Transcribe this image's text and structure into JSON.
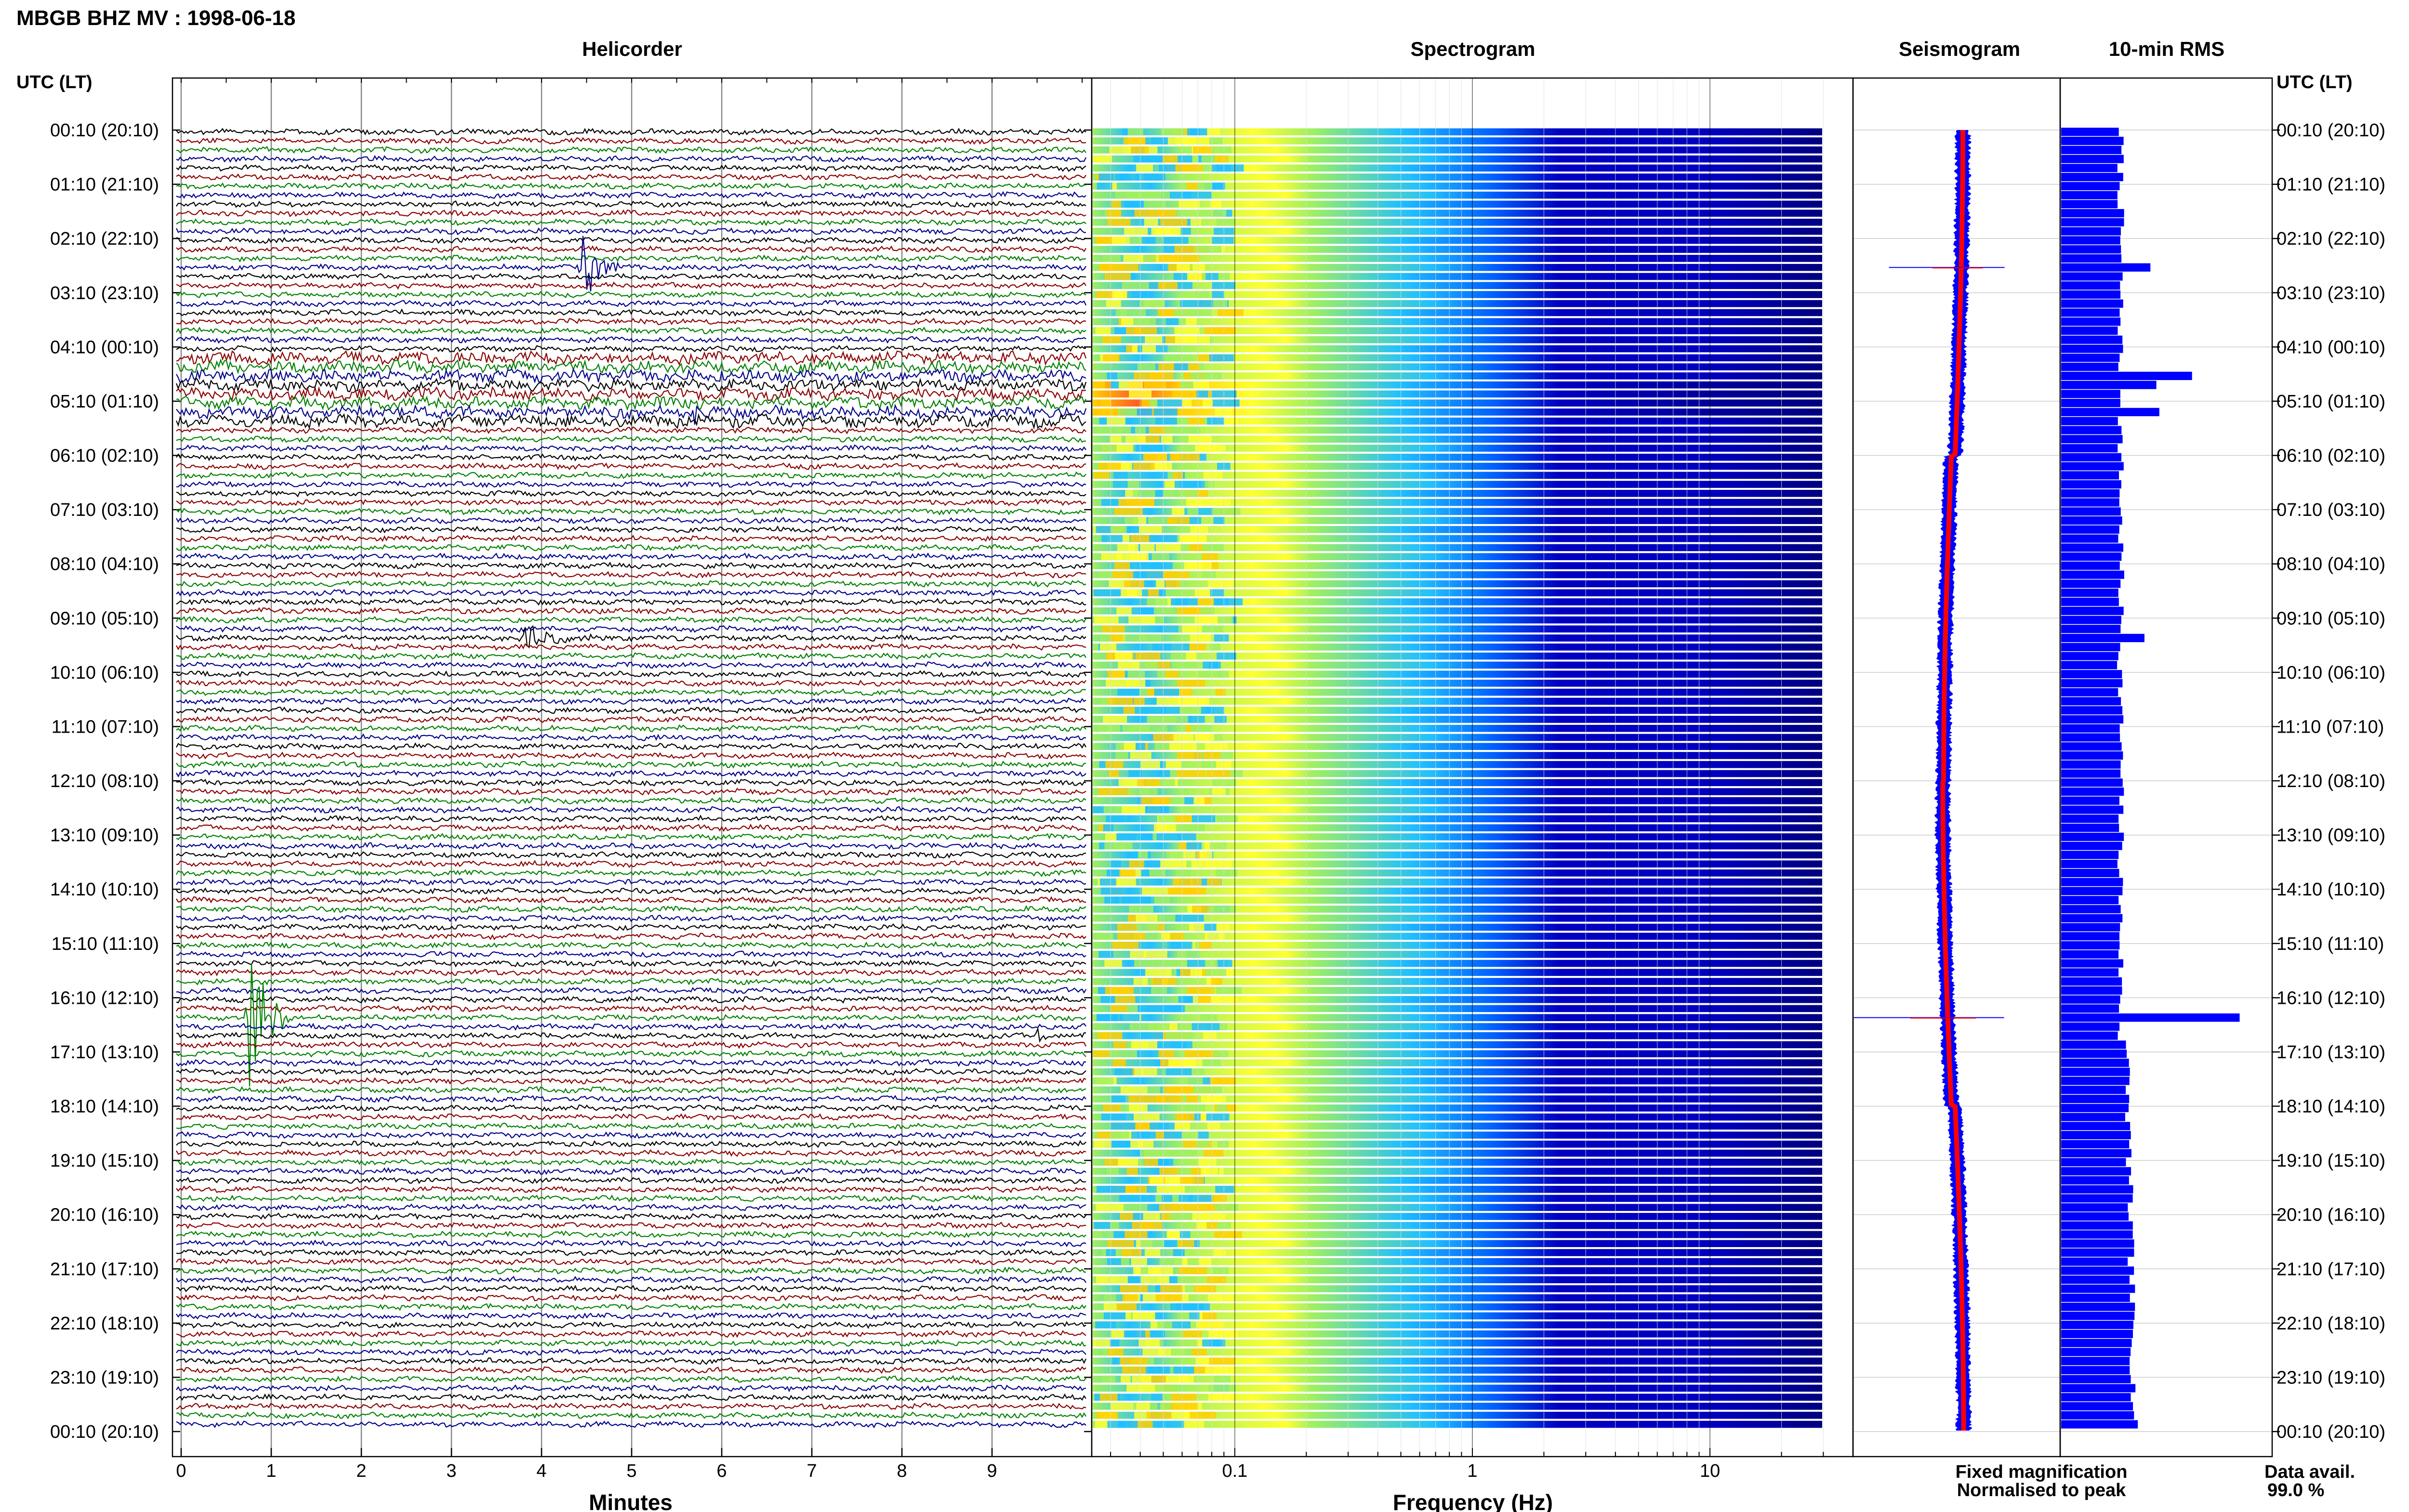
{
  "header": {
    "title": "MBGB BHZ MV : 1998-06-18"
  },
  "panels": {
    "helicorder": "Helicorder",
    "spectrogram": "Spectrogram",
    "seismogram": "Seismogram",
    "rms": "10-min RMS"
  },
  "axes": {
    "time_header_left": "UTC (LT)",
    "time_header_right": "UTC (LT)",
    "minutes_label": "Minutes",
    "frequency_label": "Frequency (Hz)"
  },
  "legend": {
    "fixed": "Fixed magnification",
    "normalised": "Normalised to peak",
    "fixed_color": "#0000ff",
    "normalised_color": "#ff0000"
  },
  "data_availability": {
    "label": "Data avail.",
    "value": "99.0 %"
  },
  "colors": {
    "trace_cycle": [
      "#000000",
      "#8b0000",
      "#008000",
      "#00008b"
    ],
    "rms_bar": "#0000ff",
    "grid": "#888888"
  },
  "chart_data": [
    {
      "type": "line",
      "name": "helicorder",
      "title": "Helicorder",
      "xlabel": "Minutes",
      "x_ticks": [
        "0",
        "1",
        "2",
        "3",
        "4",
        "5",
        "6",
        "7",
        "8",
        "9"
      ],
      "xlim": [
        0,
        10
      ],
      "line_minutes": 10,
      "row_count": 144,
      "time_labels": [
        "00:10 (20:10)",
        "01:10 (21:10)",
        "02:10 (22:10)",
        "03:10 (23:10)",
        "04:10 (00:10)",
        "05:10 (01:10)",
        "06:10 (02:10)",
        "07:10 (03:10)",
        "08:10 (04:10)",
        "09:10 (05:10)",
        "10:10 (06:10)",
        "11:10 (07:10)",
        "12:10 (08:10)",
        "13:10 (09:10)",
        "14:10 (10:10)",
        "15:10 (11:10)",
        "16:10 (12:10)",
        "17:10 (13:10)",
        "18:10 (14:10)",
        "19:10 (15:10)",
        "20:10 (16:10)",
        "21:10 (17:10)",
        "22:10 (18:10)",
        "23:10 (19:10)",
        "00:10 (20:10)"
      ],
      "events": [
        {
          "row": 15,
          "minute": 4.45,
          "amplitude": 3.5,
          "duration": 0.6
        },
        {
          "row": 27,
          "minute": 6.0,
          "amplitude": 0.8,
          "duration": 0.2
        },
        {
          "row": 31,
          "minute": 5.7,
          "amplitude": 1.2,
          "duration": 0.4
        },
        {
          "row": 56,
          "minute": 3.8,
          "amplitude": 1.5,
          "duration": 1.0
        },
        {
          "row": 98,
          "minute": 0.75,
          "amplitude": 9.0,
          "duration": 0.5
        },
        {
          "row": 100,
          "minute": 9.5,
          "amplitude": 1.0,
          "duration": 0.2
        }
      ]
    },
    {
      "type": "heatmap",
      "name": "spectrogram",
      "title": "Spectrogram",
      "xlabel": "Frequency (Hz)",
      "x_scale": "log",
      "xlim": [
        0.025,
        40
      ],
      "x_ticks": [
        "0.1",
        "1",
        "10"
      ],
      "row_count": 144,
      "colormap": [
        "#ffd000",
        "#ffff30",
        "#a0f060",
        "#20c0ff",
        "#0060ff",
        "#0000c0",
        "#000080"
      ],
      "hot_rows": [
        28,
        29,
        30,
        31
      ]
    },
    {
      "type": "line",
      "name": "seismogram",
      "title": "Seismogram",
      "series": [
        {
          "name": "Fixed magnification",
          "color": "#0000ff"
        },
        {
          "name": "Normalised to peak",
          "color": "#ff0000"
        }
      ],
      "events": [
        {
          "row": 15,
          "amplitude": 1.0
        },
        {
          "row": 98,
          "amplitude": 1.3
        }
      ]
    },
    {
      "type": "bar",
      "name": "rms",
      "title": "10-min RMS",
      "orientation": "horizontal",
      "row_count": 144,
      "baseline": 1.0,
      "peaks": [
        {
          "row": 15,
          "value": 1.5
        },
        {
          "row": 27,
          "value": 2.2
        },
        {
          "row": 28,
          "value": 1.6
        },
        {
          "row": 31,
          "value": 1.65
        },
        {
          "row": 56,
          "value": 1.4
        },
        {
          "row": 98,
          "value": 3.0
        }
      ]
    }
  ]
}
